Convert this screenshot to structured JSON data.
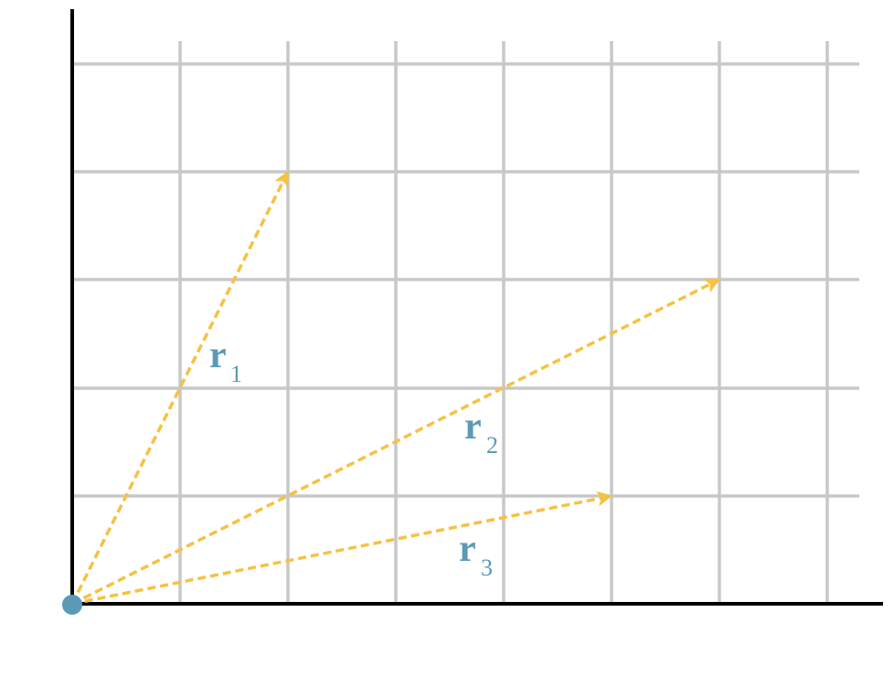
{
  "vectors": [
    {
      "symbol": "r",
      "subscript": "1"
    },
    {
      "symbol": "r",
      "subscript": "2"
    },
    {
      "symbol": "r",
      "subscript": "3"
    }
  ]
}
